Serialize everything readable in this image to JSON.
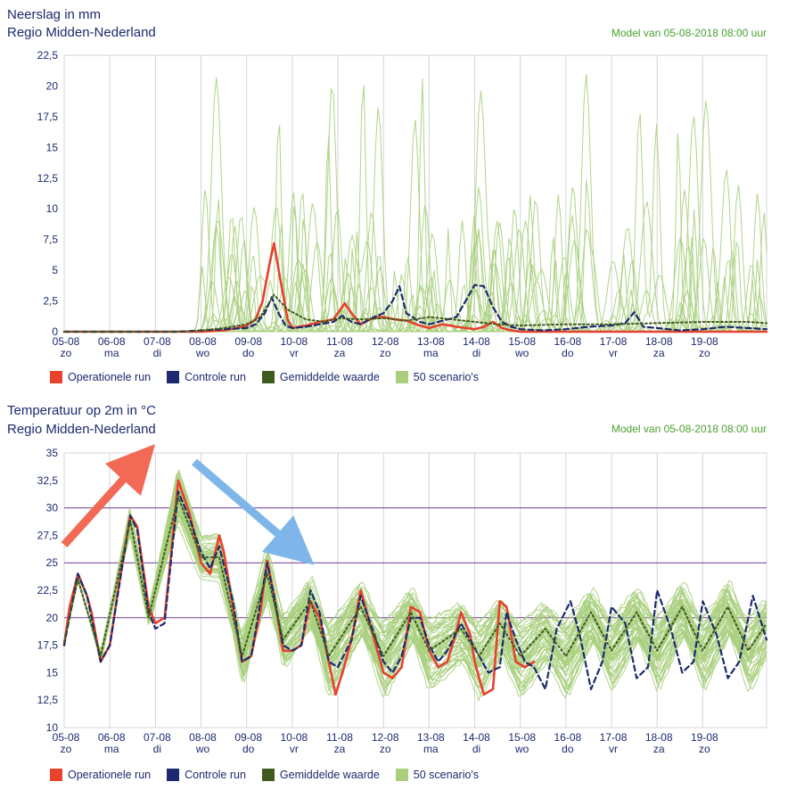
{
  "colors": {
    "operational": "#e8412c",
    "control": "#1c2a6e",
    "mean": "#3f5a1e",
    "scenarios": "#a9cf7d",
    "text": "#1c2a6e",
    "model_text": "#4aa12e",
    "threshold": "#6b3b96",
    "arrow_up": "#f26a55",
    "arrow_down": "#7fb6ea"
  },
  "legend": [
    {
      "label": "Operationele run",
      "color": "#e8412c"
    },
    {
      "label": "Controle run",
      "color": "#1c2a6e"
    },
    {
      "label": "Gemiddelde waarde",
      "color": "#3f5a1e"
    },
    {
      "label": "50 scenario's",
      "color": "#a9cf7d"
    }
  ],
  "chart_data": [
    {
      "type": "line",
      "title": "Neerslag in mm",
      "subtitle": "Regio Midden-Nederland",
      "model_label": "Model van 05-08-2018 08:00 uur",
      "ylim": [
        0,
        22.5
      ],
      "yticks": [
        "0",
        "2,5",
        "5",
        "7,5",
        "10",
        "12,5",
        "15",
        "17,5",
        "20",
        "22,5"
      ],
      "xlim": [
        0,
        15.4
      ],
      "x_dates": [
        "05-08",
        "06-08",
        "07-08",
        "08-08",
        "09-08",
        "10-08",
        "11-08",
        "12-08",
        "13-08",
        "14-08",
        "15-08",
        "16-08",
        "17-08",
        "18-08",
        "19-08"
      ],
      "x_days": [
        "zo",
        "ma",
        "di",
        "wo",
        "do",
        "vr",
        "za",
        "zo",
        "ma",
        "di",
        "wo",
        "do",
        "vr",
        "za",
        "zo"
      ],
      "grid": true,
      "series": [
        {
          "name": "Operationele run",
          "x": [
            0,
            0.5,
            1,
            1.5,
            2,
            2.5,
            3,
            3.5,
            3.8,
            4,
            4.2,
            4.35,
            4.5,
            4.6,
            4.75,
            4.9,
            5,
            5.3,
            5.6,
            5.9,
            6,
            6.15,
            6.3,
            6.5,
            6.7,
            6.9,
            7,
            7.25,
            7.5,
            7.8,
            8,
            8.3,
            8.6,
            9,
            9.2,
            9.4,
            9.6,
            9.8,
            10,
            10.5,
            11,
            12,
            13,
            14,
            15,
            15.4
          ],
          "y": [
            0,
            0,
            0,
            0,
            0,
            0,
            0,
            0.1,
            0.3,
            0.5,
            1.0,
            2.5,
            5.5,
            7.2,
            4.0,
            1.0,
            0.3,
            0.5,
            0.8,
            1.0,
            1.5,
            2.3,
            1.5,
            0.6,
            1.0,
            1.2,
            1.2,
            1.0,
            0.9,
            0.5,
            0.3,
            0.6,
            0.4,
            0.2,
            0.4,
            0.8,
            0.3,
            0.1,
            0,
            0,
            0,
            0,
            0,
            0,
            0,
            0
          ]
        },
        {
          "name": "Controle run",
          "x": [
            0,
            2.5,
            3,
            3.5,
            4,
            4.2,
            4.4,
            4.55,
            4.7,
            4.85,
            5,
            5.3,
            5.6,
            5.9,
            6.1,
            6.3,
            6.5,
            6.8,
            7,
            7.2,
            7.35,
            7.5,
            7.8,
            8,
            8.3,
            8.6,
            8.8,
            9,
            9.2,
            9.4,
            9.6,
            9.8,
            10,
            10.5,
            11,
            11.5,
            12,
            12.3,
            12.5,
            12.7,
            13,
            13.5,
            14,
            14.5,
            15,
            15.4
          ],
          "y": [
            0,
            0,
            0.1,
            0.2,
            0.3,
            0.6,
            1.5,
            2.8,
            1.5,
            0.5,
            0.3,
            0.4,
            0.6,
            0.8,
            1.3,
            0.8,
            0.6,
            1.2,
            1.5,
            2.5,
            3.7,
            1.5,
            0.8,
            0.6,
            0.9,
            1.2,
            2.5,
            3.8,
            3.7,
            2.0,
            0.8,
            0.4,
            0.2,
            0.1,
            0.2,
            0.4,
            0.5,
            0.7,
            1.6,
            0.4,
            0.3,
            0.1,
            0.2,
            0.4,
            0.3,
            0.2
          ]
        },
        {
          "name": "Gemiddelde waarde",
          "x": [
            0,
            2.5,
            3,
            3.5,
            4,
            4.3,
            4.6,
            4.9,
            5.3,
            5.7,
            6,
            6.5,
            7,
            7.5,
            8,
            8.5,
            9,
            9.5,
            10,
            11,
            12,
            13,
            14,
            15,
            15.4
          ],
          "y": [
            0,
            0,
            0.1,
            0.3,
            0.6,
            1.2,
            3.0,
            1.8,
            1.0,
            0.8,
            1.1,
            1.0,
            1.1,
            0.9,
            1.2,
            1.0,
            0.8,
            0.6,
            0.5,
            0.6,
            0.6,
            0.7,
            0.8,
            0.8,
            0.7
          ]
        }
      ]
    },
    {
      "type": "line",
      "title": "Temperatuur op 2m in °C",
      "subtitle": "Regio Midden-Nederland",
      "model_label": "Model van 05-08-2018 08:00 uur",
      "ylim": [
        10,
        35
      ],
      "yticks": [
        "10",
        "12,5",
        "15",
        "17,5",
        "20",
        "22,5",
        "25",
        "27,5",
        "30",
        "32,5",
        "35"
      ],
      "xlim": [
        0,
        15.4
      ],
      "x_dates": [
        "05-08",
        "06-08",
        "07-08",
        "08-08",
        "09-08",
        "10-08",
        "11-08",
        "12-08",
        "13-08",
        "14-08",
        "15-08",
        "16-08",
        "17-08",
        "18-08",
        "19-08"
      ],
      "x_days": [
        "zo",
        "ma",
        "di",
        "wo",
        "do",
        "vr",
        "za",
        "zo",
        "ma",
        "di",
        "wo",
        "do",
        "vr",
        "za",
        "zo"
      ],
      "threshold_lines": [
        20,
        25,
        30
      ],
      "grid": true,
      "series": [
        {
          "name": "Operationele run",
          "x": [
            0,
            0.12,
            0.3,
            0.5,
            0.6,
            0.8,
            1,
            1.2,
            1.45,
            1.6,
            1.85,
            2,
            2.2,
            2.35,
            2.5,
            2.75,
            3,
            3.2,
            3.4,
            3.5,
            3.7,
            3.9,
            4.1,
            4.3,
            4.45,
            4.6,
            4.8,
            5,
            5.2,
            5.4,
            5.6,
            5.8,
            5.95,
            6.1,
            6.3,
            6.5,
            6.8,
            7,
            7.2,
            7.4,
            7.6,
            7.8,
            8,
            8.2,
            8.4,
            8.55,
            8.7,
            8.9,
            9,
            9.2,
            9.4,
            9.55,
            9.7,
            9.9,
            10.1,
            10.3
          ],
          "y": [
            17.5,
            21,
            24,
            22,
            20.5,
            16,
            17.5,
            23,
            29.3,
            28.3,
            21,
            19.5,
            20,
            26,
            32.5,
            29.5,
            25,
            24,
            27.5,
            26,
            21,
            16,
            16.5,
            20.5,
            25.2,
            22,
            17,
            17,
            17.5,
            21.5,
            20,
            16,
            13,
            15,
            18,
            22.5,
            18,
            15,
            14.5,
            15.5,
            21,
            20.5,
            17,
            15.5,
            16,
            18,
            20.5,
            18.5,
            16,
            13,
            13.5,
            21.5,
            21,
            16,
            15.5,
            16
          ]
        },
        {
          "name": "Controle run",
          "x": [
            0,
            0.3,
            0.5,
            0.8,
            1,
            1.45,
            1.6,
            1.85,
            2,
            2.2,
            2.5,
            2.75,
            3,
            3.2,
            3.4,
            3.7,
            3.9,
            4.1,
            4.45,
            4.6,
            4.8,
            5,
            5.2,
            5.4,
            5.6,
            5.8,
            6,
            6.3,
            6.5,
            6.8,
            7,
            7.2,
            7.4,
            7.6,
            7.8,
            8,
            8.2,
            8.4,
            8.7,
            8.9,
            9.1,
            9.3,
            9.55,
            9.7,
            9.9,
            10.1,
            10.3,
            10.55,
            10.8,
            11.1,
            11.3,
            11.55,
            11.8,
            12,
            12.3,
            12.55,
            12.8,
            13,
            13.3,
            13.55,
            13.8,
            14,
            14.3,
            14.55,
            14.8,
            15.1,
            15.4
          ],
          "y": [
            17.5,
            24,
            22,
            16,
            17.5,
            29.3,
            28,
            20.5,
            19,
            19.5,
            31.5,
            29,
            26,
            24.5,
            26.5,
            21.5,
            16,
            16.5,
            25,
            22,
            17.5,
            17,
            17.5,
            22.5,
            20.5,
            16,
            15.5,
            18,
            22,
            18.5,
            16,
            15,
            16.5,
            20,
            20,
            17.5,
            16,
            17,
            19.5,
            18,
            16.5,
            15,
            15.5,
            20.5,
            18,
            16,
            15.5,
            13.5,
            19,
            21.5,
            18.5,
            13.5,
            16,
            21,
            19.5,
            14.5,
            15.5,
            22.5,
            19,
            15,
            16,
            21.5,
            18.5,
            14.5,
            16,
            22,
            18
          ]
        },
        {
          "name": "Gemiddelde waarde",
          "x": [
            0,
            0.3,
            0.8,
            1.45,
            1.85,
            2.5,
            3,
            3.4,
            3.9,
            4.45,
            4.8,
            5.4,
            5.8,
            6.5,
            7,
            7.6,
            8,
            8.7,
            9.1,
            9.55,
            10,
            10.55,
            11,
            11.55,
            12,
            12.55,
            13,
            13.55,
            14,
            14.55,
            15,
            15.4
          ],
          "y": [
            17.8,
            23.5,
            16.5,
            28.8,
            20,
            31,
            25.5,
            25.5,
            16.5,
            24,
            18,
            21.5,
            16.5,
            21,
            16.5,
            20.5,
            17,
            19,
            16.5,
            19.5,
            16.5,
            19,
            16.5,
            20.5,
            17,
            20.5,
            17,
            21,
            17,
            21,
            17,
            19.5
          ]
        }
      ]
    }
  ]
}
